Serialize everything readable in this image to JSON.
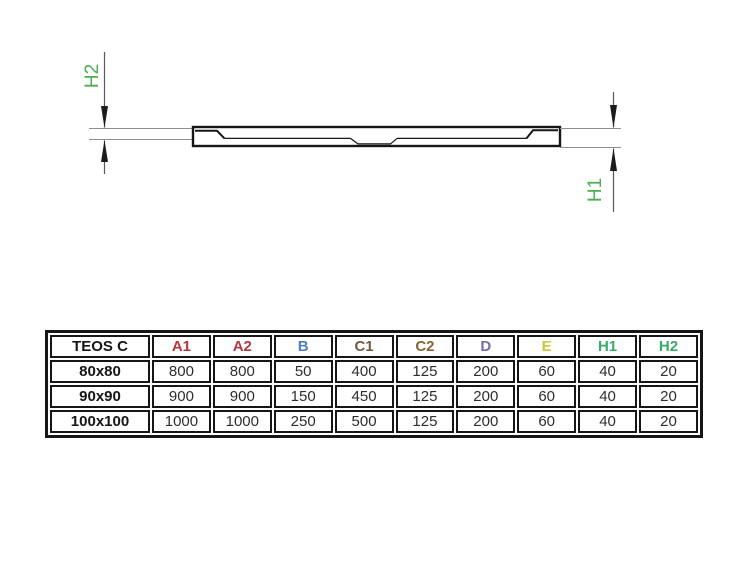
{
  "diagram": {
    "h2_label": "H2",
    "h1_label": "H1",
    "dimension_label_color": "#4cae4e"
  },
  "table": {
    "corner_header": "TEOS C",
    "columns": [
      {
        "label": "A1",
        "color": "#b2383f"
      },
      {
        "label": "A2",
        "color": "#b2383f"
      },
      {
        "label": "B",
        "color": "#4f81bd"
      },
      {
        "label": "C1",
        "color": "#6e5a44"
      },
      {
        "label": "C2",
        "color": "#8a6435"
      },
      {
        "label": "D",
        "color": "#7468a8"
      },
      {
        "label": "E",
        "color": "#cdc23e"
      },
      {
        "label": "H1",
        "color": "#3aaa68"
      },
      {
        "label": "H2",
        "color": "#3aaa68"
      }
    ],
    "rows": [
      {
        "size": "80x80",
        "values": [
          "800",
          "800",
          "50",
          "400",
          "125",
          "200",
          "60",
          "40",
          "20"
        ]
      },
      {
        "size": "90x90",
        "values": [
          "900",
          "900",
          "150",
          "450",
          "125",
          "200",
          "60",
          "40",
          "20"
        ]
      },
      {
        "size": "100x100",
        "values": [
          "1000",
          "1000",
          "250",
          "500",
          "125",
          "200",
          "60",
          "40",
          "20"
        ]
      }
    ]
  }
}
